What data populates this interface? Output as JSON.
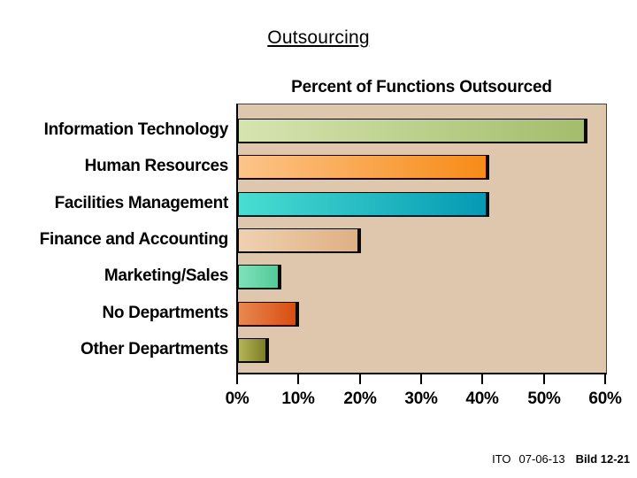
{
  "title": "Outsourcing",
  "chart_data": {
    "type": "bar",
    "orientation": "horizontal",
    "title": "Percent of Functions Outsourced",
    "categories": [
      "Information Technology",
      "Human Resources",
      "Facilities Management",
      "Finance and Accounting",
      "Marketing/Sales",
      "No Departments",
      "Other Departments"
    ],
    "values": [
      57,
      41,
      41,
      20,
      7,
      10,
      5
    ],
    "value_unit": "%",
    "xlim": [
      0,
      60
    ],
    "xtick_labels": [
      "0%",
      "10%",
      "20%",
      "30%",
      "40%",
      "50%",
      "60%"
    ],
    "grid": false,
    "legend": false,
    "plot_background": "#dfc7ae",
    "bar_border_color": "#0a0a0a",
    "bar_gradients": [
      [
        "#d5e5b0",
        "#a3bd6c"
      ],
      [
        "#fcc489",
        "#f78b17"
      ],
      [
        "#49ded2",
        "#0599b4"
      ],
      [
        "#efd1b1",
        "#dfb084"
      ],
      [
        "#7ee2b8",
        "#52ca99"
      ],
      [
        "#e98950",
        "#d84d11"
      ],
      [
        "#b4b558",
        "#7d7d26"
      ]
    ]
  },
  "footer": {
    "doc_code": "ITO",
    "date": "07-06-13",
    "slide_ref": "Bild 12-21"
  }
}
